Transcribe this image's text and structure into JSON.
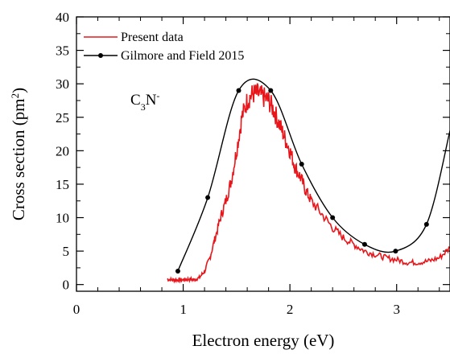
{
  "chart_data": {
    "type": "line",
    "xlabel": "Electron energy (eV)",
    "ylabel": "Cross section (pm",
    "ylabel_sup": "2",
    "ylabel_end": ")",
    "xlim": [
      0,
      3.5
    ],
    "ylim": [
      -1,
      40
    ],
    "x_ticks": [
      0,
      1,
      2,
      3
    ],
    "y_ticks": [
      0,
      5,
      10,
      15,
      20,
      25,
      30,
      35,
      40
    ],
    "x_tick_labels": [
      "0",
      "1",
      "2",
      "3"
    ],
    "y_tick_labels": [
      "0",
      "5",
      "10",
      "15",
      "20",
      "25",
      "30",
      "35",
      "40"
    ],
    "annotation": {
      "base": "C",
      "sub": "3",
      "mid": "N",
      "sup": "-"
    },
    "legend_position": "top-left",
    "series": [
      {
        "name": "Present data",
        "color": "#e8161b",
        "marker": "none",
        "x": [
          0.85,
          0.9,
          0.95,
          1.0,
          1.05,
          1.1,
          1.15,
          1.2,
          1.25,
          1.3,
          1.35,
          1.4,
          1.45,
          1.5,
          1.55,
          1.6,
          1.65,
          1.7,
          1.75,
          1.8,
          1.85,
          1.9,
          1.95,
          2.0,
          2.05,
          2.1,
          2.15,
          2.2,
          2.3,
          2.4,
          2.5,
          2.6,
          2.7,
          2.8,
          2.9,
          3.0,
          3.1,
          3.2,
          3.3,
          3.4,
          3.5
        ],
        "y": [
          0.8,
          0.7,
          0.7,
          0.7,
          0.8,
          0.7,
          1.0,
          2.0,
          4.0,
          7.0,
          10.0,
          12.5,
          15.5,
          20.0,
          25.0,
          27.5,
          28.5,
          28.5,
          28.0,
          27.5,
          26.0,
          24.0,
          22.0,
          20.0,
          17.5,
          16.0,
          14.0,
          12.5,
          10.5,
          8.5,
          7.0,
          6.0,
          5.0,
          4.5,
          4.0,
          3.7,
          3.3,
          3.3,
          3.5,
          4.0,
          5.5
        ]
      },
      {
        "name": "Gilmore and Field 2015",
        "color": "#000000",
        "marker": "dot",
        "x": [
          0.95,
          1.23,
          1.52,
          1.82,
          2.11,
          2.4,
          2.7,
          2.99,
          3.28,
          3.5
        ],
        "y": [
          2.0,
          13.0,
          29.0,
          29.0,
          18.0,
          10.0,
          6.0,
          5.0,
          9.0,
          23.0
        ]
      }
    ]
  }
}
